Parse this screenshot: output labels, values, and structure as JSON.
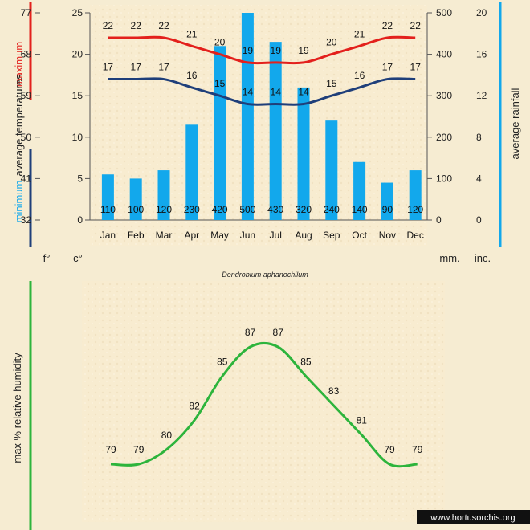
{
  "chart_data": [
    {
      "type": "bar",
      "categories": [
        "Jan",
        "Feb",
        "Mar",
        "Apr",
        "May",
        "Jun",
        "Jul",
        "Aug",
        "Sep",
        "Oct",
        "Nov",
        "Dec"
      ],
      "rainfall_mm": [
        110,
        100,
        120,
        230,
        420,
        500,
        430,
        320,
        240,
        140,
        90,
        120
      ],
      "rainfall_labels": [
        "110",
        "100",
        "120",
        "230",
        "420",
        "500",
        "430",
        "320",
        "240",
        "140",
        "90",
        "120"
      ],
      "series": [
        {
          "name": "maximum",
          "color": "#e3201c",
          "values": [
            22,
            22,
            22,
            21,
            20,
            19,
            19,
            19,
            20,
            21,
            22,
            22
          ],
          "labels": [
            "22",
            "22",
            "22",
            "21",
            "20",
            "19",
            "19",
            "19",
            "20",
            "21",
            "22",
            "22"
          ]
        },
        {
          "name": "minimum",
          "color": "#1f3f7a",
          "values": [
            17,
            17,
            17,
            16,
            15,
            14,
            14,
            14,
            15,
            16,
            17,
            17
          ],
          "labels": [
            "17",
            "17",
            "17",
            "16",
            "15",
            "14",
            "14",
            "14",
            "15",
            "16",
            "17",
            "17"
          ]
        }
      ],
      "bar_color": "#12a8ec",
      "celsius_ylim": [
        0,
        25
      ],
      "celsius_ticks": [
        "25",
        "20",
        "15",
        "10",
        "5",
        "0"
      ],
      "fahrenheit_ticks": [
        "77",
        "68",
        "59",
        "50",
        "41",
        "32"
      ],
      "mm_ylim": [
        0,
        500
      ],
      "mm_ticks": [
        "500",
        "400",
        "300",
        "200",
        "100",
        "0"
      ],
      "inch_ticks": [
        "20",
        "16",
        "12",
        "8",
        "4",
        "0"
      ],
      "label_maximum": "maximum",
      "label_avg_temps": "average temperatures",
      "label_minimum": "minimum",
      "label_rainfall": "average rainfall",
      "unit_f": "f°",
      "unit_c": "c°",
      "unit_mm": "mm.",
      "unit_inch": "inc.",
      "species": "Dendrobium aphanochilum"
    },
    {
      "type": "line",
      "categories": [
        "Jan",
        "Feb",
        "Mar",
        "Apr",
        "May",
        "Jun",
        "Jul",
        "Aug",
        "Sep",
        "Oct",
        "Nov",
        "Dec"
      ],
      "values": [
        79,
        79,
        80,
        82,
        85,
        87,
        87,
        85,
        83,
        81,
        79,
        79
      ],
      "labels": [
        "79",
        "79",
        "80",
        "82",
        "85",
        "87",
        "87",
        "85",
        "83",
        "81",
        "79",
        "79"
      ],
      "ylim": [
        79,
        87
      ],
      "ylabel": "max % relative humidity",
      "color": "#2db43c"
    }
  ],
  "watermark": "www.hortusorchis.org"
}
